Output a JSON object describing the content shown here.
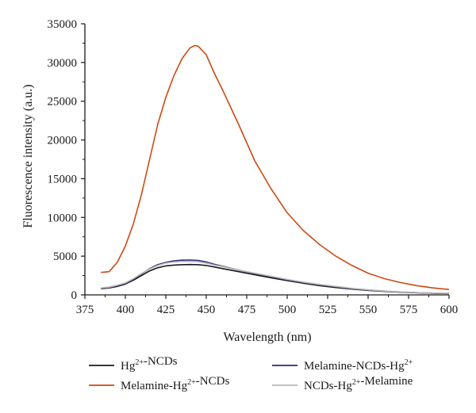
{
  "chart_data": {
    "type": "line",
    "title": "",
    "xlabel": "Wavelength (nm)",
    "ylabel": "Fluorescence intensity (a.u.)",
    "xlim": [
      375,
      600
    ],
    "ylim": [
      0,
      35000
    ],
    "xticks": [
      "375",
      "400",
      "425",
      "450",
      "475",
      "500",
      "525",
      "550",
      "575",
      "600"
    ],
    "yticks": [
      "0",
      "5000",
      "10000",
      "15000",
      "20000",
      "25000",
      "30000",
      "35000"
    ],
    "grid": false,
    "legend_position": "bottom",
    "series": [
      {
        "name": "Hg2+-NCDs",
        "legend": [
          {
            "t": "Hg"
          },
          {
            "t": "2+",
            "sup": true
          },
          {
            "t": "-NCDs"
          }
        ],
        "color": "#1a1a1a",
        "x": [
          385,
          390,
          395,
          400,
          405,
          410,
          415,
          420,
          425,
          430,
          435,
          440,
          445,
          450,
          455,
          460,
          470,
          480,
          490,
          500,
          510,
          520,
          530,
          540,
          550,
          560,
          570,
          580,
          590,
          600
        ],
        "y": [
          800,
          900,
          1100,
          1400,
          1900,
          2500,
          3100,
          3500,
          3750,
          3850,
          3900,
          3920,
          3900,
          3800,
          3600,
          3400,
          3000,
          2600,
          2200,
          1850,
          1500,
          1200,
          950,
          750,
          580,
          450,
          350,
          280,
          220,
          170
        ]
      },
      {
        "name": "Melamine-Hg2+-NCDs",
        "legend": [
          {
            "t": "Melamine-Hg"
          },
          {
            "t": "2+",
            "sup": true
          },
          {
            "t": "-NCDs"
          }
        ],
        "color": "#cc4a14",
        "x": [
          385,
          390,
          395,
          400,
          405,
          410,
          415,
          420,
          425,
          430,
          435,
          440,
          443,
          445,
          450,
          455,
          460,
          470,
          480,
          490,
          500,
          510,
          520,
          530,
          540,
          550,
          560,
          570,
          580,
          590,
          600
        ],
        "y": [
          2900,
          3000,
          4200,
          6300,
          9200,
          13000,
          17500,
          22000,
          25500,
          28300,
          30500,
          31900,
          32200,
          32100,
          31000,
          28600,
          26500,
          22000,
          17300,
          13700,
          10600,
          8300,
          6500,
          5000,
          3800,
          2800,
          2100,
          1600,
          1200,
          900,
          700
        ]
      },
      {
        "name": "Melamine-NCDs-Hg2+",
        "legend": [
          {
            "t": "Melamine-NCDs-Hg"
          },
          {
            "t": "2+",
            "sup": true
          }
        ],
        "color": "#2b2a7a",
        "x": [
          385,
          390,
          395,
          400,
          405,
          410,
          415,
          420,
          425,
          430,
          435,
          440,
          445,
          450,
          455,
          460,
          470,
          480,
          490,
          500,
          510,
          520,
          530,
          540,
          550,
          560,
          570,
          580,
          590,
          600
        ],
        "y": [
          850,
          950,
          1200,
          1500,
          2050,
          2700,
          3400,
          3900,
          4200,
          4400,
          4480,
          4500,
          4450,
          4250,
          3950,
          3700,
          3200,
          2750,
          2350,
          1950,
          1600,
          1300,
          1050,
          800,
          620,
          480,
          370,
          290,
          230,
          180
        ]
      },
      {
        "name": "NCDs-Hg2+-Melamine",
        "legend": [
          {
            "t": "NCDs-Hg"
          },
          {
            "t": "2+",
            "sup": true
          },
          {
            "t": "-Melamine"
          }
        ],
        "color": "#b8b8b8",
        "x": [
          385,
          390,
          395,
          400,
          405,
          410,
          415,
          420,
          425,
          430,
          435,
          440,
          445,
          450,
          455,
          460,
          470,
          480,
          490,
          500,
          510,
          520,
          530,
          540,
          550,
          560,
          570,
          580,
          590,
          600
        ],
        "y": [
          900,
          1000,
          1250,
          1550,
          2100,
          2750,
          3350,
          3800,
          4100,
          4250,
          4320,
          4330,
          4280,
          4100,
          3850,
          3650,
          3200,
          2800,
          2400,
          2000,
          1650,
          1350,
          1100,
          850,
          650,
          500,
          390,
          300,
          240,
          190
        ]
      }
    ]
  }
}
